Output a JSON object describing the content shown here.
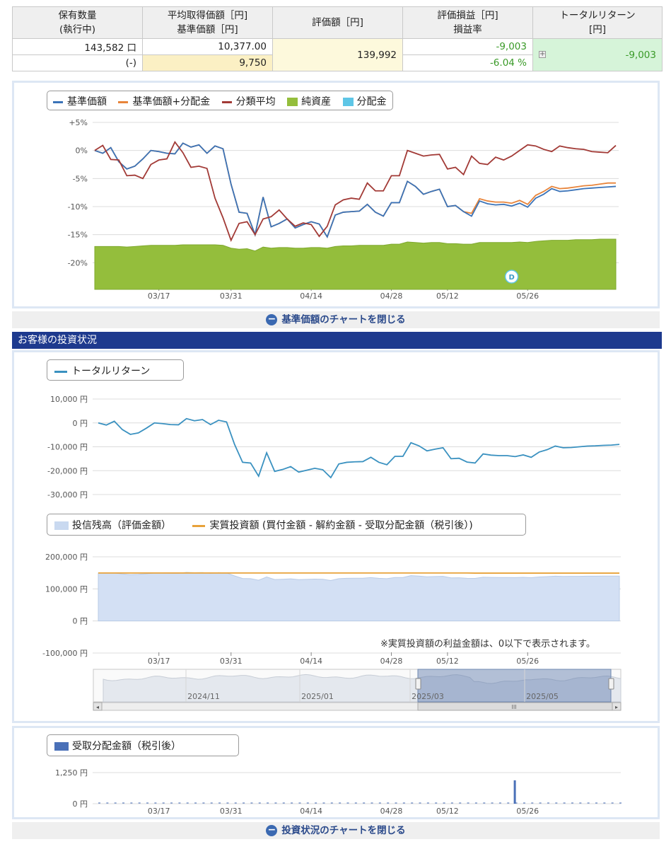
{
  "summary": {
    "headers": {
      "quantity": [
        "保有数量",
        "(執行中)"
      ],
      "avg_price": [
        "平均取得価額［円]",
        "基準価額［円]"
      ],
      "valuation": "評価額［円]",
      "pl": [
        "評価損益［円]",
        "損益率"
      ],
      "total_return": [
        "トータルリターン",
        "[円]"
      ]
    },
    "quantity": "143,582 口",
    "pending": "(-)",
    "avg_price": "10,377.00",
    "nav": "9,750",
    "valuation": "139,992",
    "pl_amount": "-9,003",
    "pl_rate": "-6.04 %",
    "total_return": "-9,003",
    "expand_icon": "+"
  },
  "chart1": {
    "legend": [
      "基準価額",
      "基準価額+分配金",
      "分類平均",
      "純資産",
      "分配金"
    ],
    "y_ticks": [
      "+5%",
      "0%",
      "-5%",
      "-10%",
      "-15%",
      "-20%"
    ],
    "x_ticks": [
      "03/17",
      "03/31",
      "04/14",
      "04/28",
      "05/12",
      "05/26"
    ],
    "marker": "D"
  },
  "toggle1": "基準価額のチャートを閉じる",
  "section_header": "お客様の投資状況",
  "chart2": {
    "legend": [
      "トータルリターン"
    ],
    "y_ticks": [
      "10,000 円",
      "0 円",
      "-10,000 円",
      "-20,000 円",
      "-30,000 円"
    ]
  },
  "chart3": {
    "legend": [
      "投信残高（評価金額）",
      "実質投資額 (買付金額 - 解約金額 - 受取分配金額（税引後）)"
    ],
    "y_ticks": [
      "200,000 円",
      "100,000 円",
      "0 円",
      "-100,000 円"
    ],
    "x_ticks": [
      "03/17",
      "03/31",
      "04/14",
      "04/28",
      "05/12",
      "05/26"
    ],
    "note": "※実質投資額の利益金額は、0以下で表示されます。",
    "navigator_ticks": [
      "2024/11",
      "2025/01",
      "2025/03",
      "2025/05"
    ],
    "scroll_left": "◂",
    "scroll_right": "▸",
    "scroll_grip": "III"
  },
  "chart4": {
    "legend": [
      "受取分配金額（税引後）"
    ],
    "y_ticks": [
      "1,250 円",
      "0 円"
    ],
    "x_ticks": [
      "03/17",
      "03/31",
      "04/14",
      "04/28",
      "05/12",
      "05/26"
    ]
  },
  "toggle2": "投資状況のチャートを閉じる",
  "colors": {
    "nav": "#3a73b8",
    "nav_plus_dist": "#e8843a",
    "category_avg": "#a23a36",
    "net_assets": "#94be3c",
    "distribution": "#5ec6e6",
    "total_return": "#3a91c0",
    "balance_fill": "#d3e0f4",
    "invested": "#e8a23a",
    "dist_bar": "#4a70b8",
    "header_bg": "#1e3a8e"
  },
  "chart_data": [
    {
      "type": "line",
      "x": [
        "03/05",
        "03/06",
        "03/07",
        "03/10",
        "03/11",
        "03/12",
        "03/13",
        "03/14",
        "03/17",
        "03/18",
        "03/19",
        "03/21",
        "03/24",
        "03/25",
        "03/26",
        "03/27",
        "03/28",
        "03/31",
        "04/01",
        "04/02",
        "04/03",
        "04/04",
        "04/07",
        "04/08",
        "04/09",
        "04/10",
        "04/11",
        "04/14",
        "04/15",
        "04/16",
        "04/17",
        "04/18",
        "04/21",
        "04/22",
        "04/23",
        "04/24",
        "04/25",
        "04/28",
        "04/30",
        "05/01",
        "05/02",
        "05/07",
        "05/08",
        "05/09",
        "05/12",
        "05/13",
        "05/14",
        "05/15",
        "05/16",
        "05/19",
        "05/20",
        "05/21",
        "05/22",
        "05/23",
        "05/26",
        "05/27",
        "05/28",
        "05/29",
        "05/30",
        "06/02",
        "06/03",
        "06/04",
        "06/05",
        "06/06",
        "06/09",
        "06/10"
      ],
      "series": [
        {
          "name": "基準価額",
          "values": [
            0,
            -0.5,
            0.5,
            -2,
            -3.3,
            -2.8,
            -1.5,
            0,
            -0.2,
            -0.5,
            -0.6,
            1.3,
            0.6,
            1.0,
            -0.5,
            0.8,
            0.3,
            -6,
            -11,
            -11.2,
            -15,
            -8.3,
            -13.6,
            -13,
            -12.2,
            -13.8,
            -13.2,
            -12.7,
            -13.1,
            -15.4,
            -11.5,
            -11,
            -10.9,
            -10.8,
            -9.6,
            -11,
            -11.7,
            -9.3,
            -9.3,
            -5.5,
            -6.4,
            -7.8,
            -7.3,
            -6.9,
            -10,
            -9.8,
            -10.9,
            -11.7,
            -9,
            -9.5,
            -9.7,
            -9.6,
            -9.9,
            -9.4,
            -10.1,
            -8.5,
            -7.8,
            -6.8,
            -7.3,
            -7.2,
            -7.0,
            -6.8,
            -6.7,
            -6.6,
            -6.5,
            -6.4
          ]
        },
        {
          "name": "基準価額+分配金",
          "values": [
            0,
            -0.5,
            0.5,
            -2,
            -3.3,
            -2.8,
            -1.5,
            0,
            -0.2,
            -0.5,
            -0.6,
            1.3,
            0.6,
            1.0,
            -0.5,
            0.8,
            0.3,
            -6,
            -11,
            -11.2,
            -15,
            -8.3,
            -13.6,
            -13,
            -12.2,
            -13.8,
            -13.2,
            -12.7,
            -13.1,
            -15.4,
            -11.5,
            -11,
            -10.9,
            -10.8,
            -9.6,
            -11,
            -11.7,
            -9.3,
            -9.3,
            -5.5,
            -6.4,
            -7.8,
            -7.3,
            -6.9,
            -10,
            -9.8,
            -10.9,
            -11.2,
            -8.6,
            -9.0,
            -9.2,
            -9.2,
            -9.4,
            -8.9,
            -9.6,
            -8.0,
            -7.3,
            -6.4,
            -6.8,
            -6.7,
            -6.5,
            -6.3,
            -6.2,
            -6.0,
            -5.8,
            -5.8
          ]
        },
        {
          "name": "分類平均",
          "values": [
            0,
            0.9,
            -1.6,
            -1.7,
            -4.5,
            -4.4,
            -5,
            -2.5,
            -1.7,
            -1.5,
            1.5,
            -0.4,
            -3,
            -2.8,
            -3.2,
            -8.5,
            -12,
            -16,
            -13,
            -12.7,
            -15,
            -12.2,
            -11.8,
            -10.6,
            -12.2,
            -13.5,
            -12.9,
            -13.2,
            -15.3,
            -13.5,
            -9.7,
            -8.8,
            -8.5,
            -8.7,
            -5.8,
            -7.2,
            -7.2,
            -4.5,
            -4.5,
            0,
            -0.5,
            -1,
            -0.8,
            -0.7,
            -3.3,
            -3.0,
            -4.3,
            -1.0,
            -2.3,
            -2.5,
            -1.2,
            -1.7,
            -1.0,
            0,
            1.0,
            0.8,
            0.2,
            -0.2,
            0.8,
            0.5,
            0.3,
            0.2,
            -0.2,
            -0.3,
            -0.4,
            0.9
          ]
        },
        {
          "name": "純資産",
          "values": [
            -17.1,
            -17.1,
            -17.1,
            -17.1,
            -17.2,
            -17.1,
            -17.0,
            -16.9,
            -16.9,
            -16.9,
            -16.9,
            -16.8,
            -16.8,
            -16.8,
            -16.8,
            -16.8,
            -16.9,
            -17.4,
            -17.6,
            -17.5,
            -17.9,
            -17.2,
            -17.4,
            -17.3,
            -17.3,
            -17.4,
            -17.4,
            -17.3,
            -17.3,
            -17.4,
            -17.1,
            -17.0,
            -17.0,
            -16.9,
            -16.9,
            -16.9,
            -16.9,
            -16.7,
            -16.7,
            -16.3,
            -16.4,
            -16.5,
            -16.4,
            -16.4,
            -16.6,
            -16.6,
            -16.7,
            -16.7,
            -16.4,
            -16.4,
            -16.4,
            -16.4,
            -16.4,
            -16.3,
            -16.4,
            -16.2,
            -16.1,
            -16.0,
            -16.0,
            -16.0,
            -15.9,
            -15.9,
            -15.9,
            -15.8,
            -15.8,
            -15.8
          ]
        }
      ],
      "ylim": [
        -25,
        5
      ],
      "marker_label": "D"
    },
    {
      "type": "line",
      "series": [
        {
          "name": "トータルリターン",
          "values": [
            0,
            -900,
            700,
            -2800,
            -4800,
            -4200,
            -2200,
            0,
            -300,
            -700,
            -800,
            1800,
            900,
            1400,
            -700,
            1100,
            400,
            -9000,
            -16500,
            -16800,
            -22300,
            -12500,
            -20300,
            -19500,
            -18300,
            -20600,
            -19800,
            -19000,
            -19600,
            -22900,
            -17200,
            -16500,
            -16300,
            -16200,
            -14400,
            -16500,
            -17500,
            -14000,
            -14000,
            -8300,
            -9600,
            -11700,
            -11000,
            -10400,
            -15000,
            -14800,
            -16400,
            -16800,
            -13000,
            -13500,
            -13700,
            -13700,
            -14100,
            -13400,
            -14400,
            -12200,
            -11200,
            -9700,
            -10400,
            -10300,
            -10000,
            -9700,
            -9600,
            -9400,
            -9300,
            -9003
          ]
        }
      ],
      "ylim": [
        -30000,
        10000
      ]
    },
    {
      "type": "area",
      "series": [
        {
          "name": "投信残高（評価金額）",
          "values": [
            149500,
            149000,
            149500,
            146500,
            144500,
            145300,
            147000,
            149500,
            149200,
            148700,
            148500,
            151400,
            150300,
            151000,
            148500,
            150700,
            149900,
            140500,
            132500,
            131800,
            127000,
            137000,
            129200,
            130000,
            131300,
            128800,
            129800,
            130600,
            130000,
            126000,
            132000,
            133000,
            133200,
            133400,
            135200,
            133000,
            132000,
            135500,
            135500,
            141200,
            139800,
            137800,
            138500,
            139100,
            134400,
            134700,
            133000,
            132600,
            136300,
            135800,
            135600,
            135600,
            135200,
            135900,
            135000,
            137100,
            138100,
            139500,
            138800,
            139000,
            139200,
            139500,
            139700,
            139900,
            139900,
            139992
          ]
        },
        {
          "name": "実質投資額 (買付金額 - 解約金額 - 受取分配金額（税引後）)",
          "values": [
            149600,
            149600,
            149600,
            149600,
            149600,
            149600,
            149600,
            149600,
            149600,
            149600,
            149600,
            149600,
            149600,
            149600,
            149600,
            149600,
            149600,
            149600,
            149600,
            149600,
            149600,
            149600,
            149600,
            149600,
            149600,
            149600,
            149600,
            149600,
            149600,
            149600,
            149600,
            149600,
            149600,
            149600,
            149600,
            149600,
            149600,
            149600,
            149600,
            149600,
            149600,
            149600,
            149600,
            149600,
            149600,
            149600,
            149600,
            149100,
            149100,
            149100,
            149100,
            149100,
            149100,
            149100,
            149100,
            149100,
            149100,
            149100,
            149100,
            149100,
            149100,
            149100,
            149100,
            149100,
            149100,
            149100
          ]
        }
      ],
      "ylim": [
        -100000,
        200000
      ]
    },
    {
      "type": "bar",
      "series": [
        {
          "name": "受取分配金額（税引後）",
          "x": [
            "05/22"
          ],
          "values": [
            940
          ]
        }
      ],
      "ylim": [
        0,
        1250
      ]
    }
  ]
}
